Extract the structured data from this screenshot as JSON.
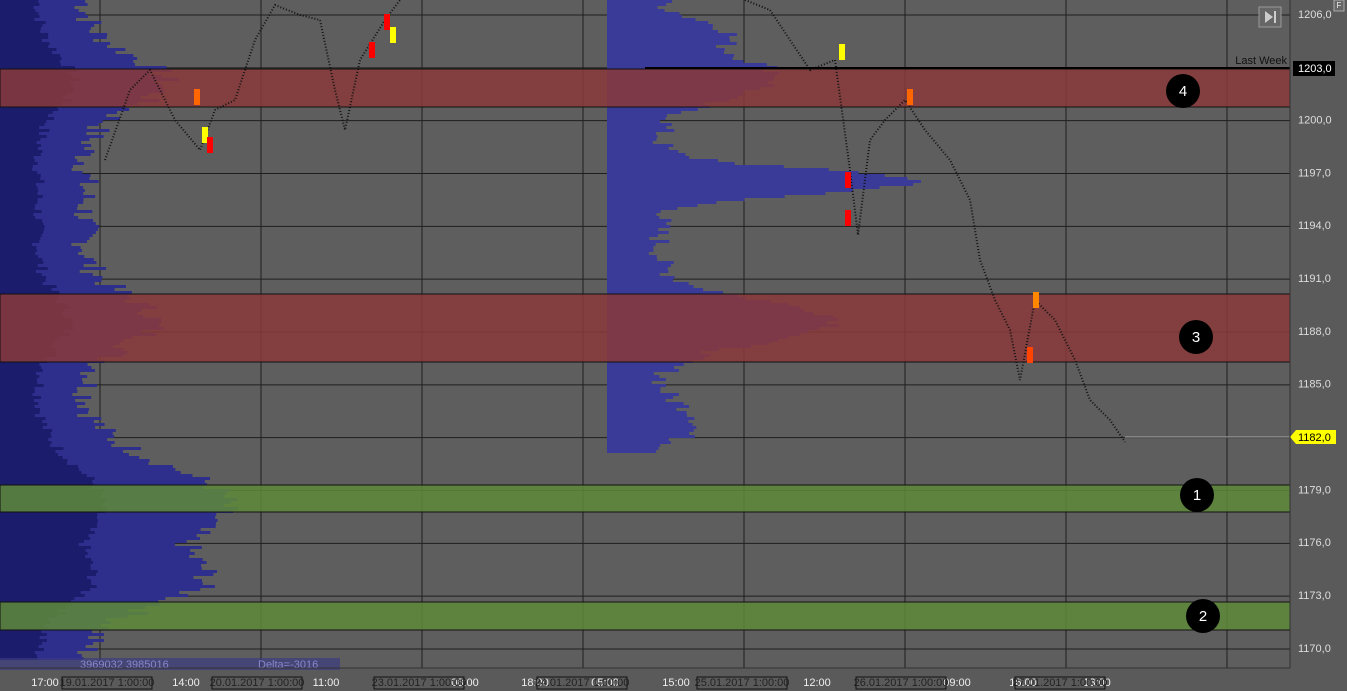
{
  "price_axis": {
    "ticks": [
      "1206,0",
      "1203,0",
      "1200,0",
      "1197,0",
      "1194,0",
      "1191,0",
      "1188,0",
      "1185,0",
      "1182,0",
      "1179,0",
      "1176,0",
      "1173,0",
      "1170,0"
    ],
    "last_week_price": "1203,0",
    "current_price": "1182,0"
  },
  "annotations": {
    "last_week": "Last Week",
    "volume": "3969032 3985016",
    "delta": "Delta=-3016"
  },
  "zones": [
    {
      "label": "4"
    },
    {
      "label": "3"
    },
    {
      "label": "1"
    },
    {
      "label": "2"
    }
  ],
  "time_axis": {
    "times": [
      "17:00",
      "14:00",
      "11:00",
      "08:00",
      "18:00",
      "05:00",
      "15:00",
      "12:00",
      "09:00",
      "16:00",
      "13:00"
    ],
    "dates": [
      "19.01.2017 1:00:00",
      "20.01.2017 1:00:00",
      "23.01.2017 1:00:00",
      "24.01.2017 1:00:00",
      "25.01.2017 1:00:00",
      "26.01.2017 1:00:00",
      "27.01.2017 1:00:00"
    ]
  },
  "corner_button": "F"
}
